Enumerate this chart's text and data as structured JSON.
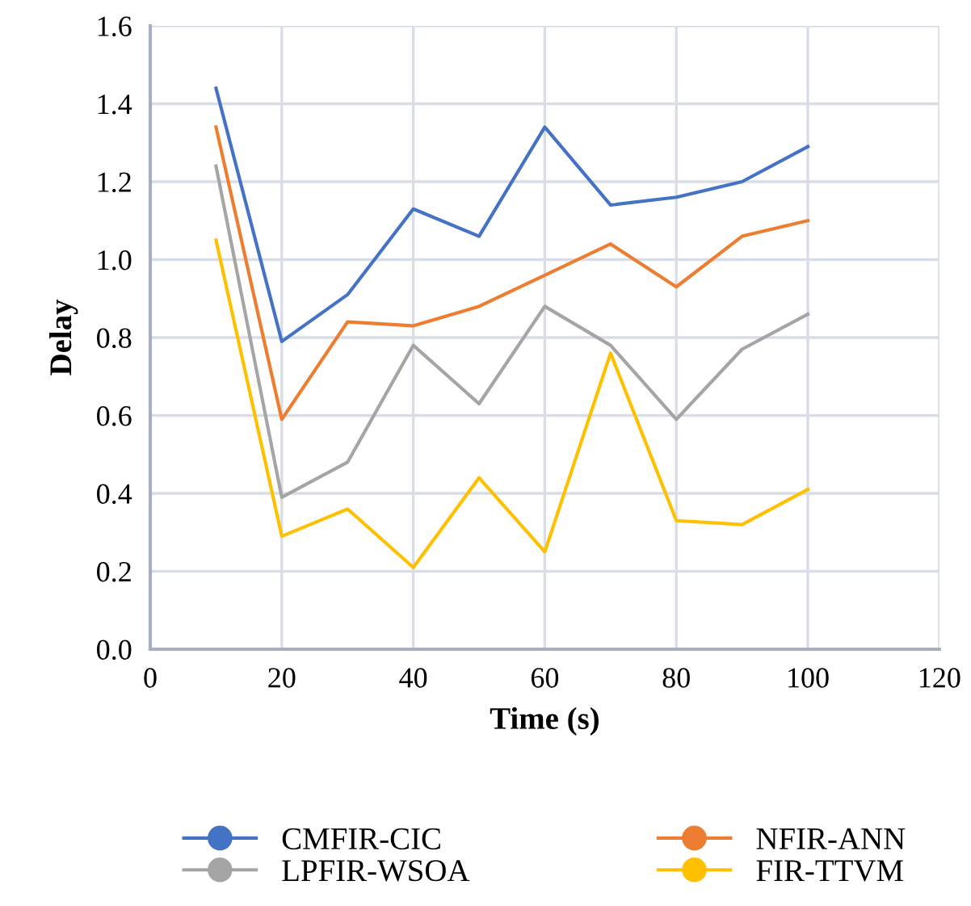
{
  "chart_data": {
    "type": "line",
    "xlabel": "Time (s)",
    "ylabel": "Delay",
    "x": [
      10,
      20,
      30,
      40,
      50,
      60,
      70,
      80,
      90,
      100
    ],
    "series": [
      {
        "name": "CMFIR-CIC",
        "color": "#4472c4",
        "values": [
          1.44,
          0.79,
          0.91,
          1.13,
          1.06,
          1.34,
          1.14,
          1.16,
          1.2,
          1.29
        ]
      },
      {
        "name": "NFIR-ANN",
        "color": "#ed7d31",
        "values": [
          1.34,
          0.59,
          0.84,
          0.83,
          0.88,
          0.96,
          1.04,
          0.93,
          1.06,
          1.1
        ]
      },
      {
        "name": "LPFIR-WSOA",
        "color": "#a5a5a5",
        "values": [
          1.24,
          0.39,
          0.48,
          0.78,
          0.63,
          0.88,
          0.78,
          0.59,
          0.77,
          0.86
        ]
      },
      {
        "name": "FIR-TTVM",
        "color": "#ffc000",
        "values": [
          1.05,
          0.29,
          0.36,
          0.21,
          0.44,
          0.25,
          0.76,
          0.33,
          0.32,
          0.41
        ]
      }
    ],
    "xlim": [
      0,
      120
    ],
    "xticks": [
      0,
      20,
      40,
      60,
      80,
      100,
      120
    ],
    "ylim": [
      0,
      1.6
    ],
    "yticks": [
      {
        "value": 0,
        "label": "0.0"
      },
      {
        "value": 0.2,
        "label": "0.2"
      },
      {
        "value": 0.4,
        "label": "0.4"
      },
      {
        "value": 0.6,
        "label": "0.6"
      },
      {
        "value": 0.8,
        "label": "0.8"
      },
      {
        "value": 1.0,
        "label": "1.0"
      },
      {
        "value": 1.2,
        "label": "1.2"
      },
      {
        "value": 1.4,
        "label": "1.4"
      },
      {
        "value": 1.6,
        "label": "1.6"
      }
    ],
    "grid": true,
    "legend": "bottom",
    "line_style": "solid"
  }
}
